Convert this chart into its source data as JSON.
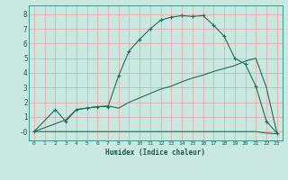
{
  "title": "",
  "xlabel": "Humidex (Indice chaleur)",
  "ylabel": "",
  "bg_color": "#c8e8e0",
  "grid_color": "#e8aaaa",
  "line_color": "#1a7060",
  "xlim": [
    -0.5,
    23.5
  ],
  "ylim": [
    -0.6,
    8.6
  ],
  "xticks": [
    0,
    1,
    2,
    3,
    4,
    5,
    6,
    7,
    8,
    9,
    10,
    11,
    12,
    13,
    14,
    15,
    16,
    17,
    18,
    19,
    20,
    21,
    22,
    23
  ],
  "yticks": [
    0,
    1,
    2,
    3,
    4,
    5,
    6,
    7,
    8
  ],
  "line1_x": [
    0,
    2,
    3,
    4,
    5,
    6,
    7,
    8,
    9,
    10,
    11,
    12,
    13,
    14,
    15,
    16,
    17,
    18,
    19,
    20,
    21,
    22,
    23
  ],
  "line1_y": [
    0.0,
    1.5,
    0.7,
    1.5,
    1.6,
    1.7,
    1.7,
    3.8,
    5.5,
    6.3,
    7.0,
    7.6,
    7.8,
    7.9,
    7.85,
    7.9,
    7.25,
    6.5,
    5.0,
    4.6,
    3.1,
    0.7,
    -0.1
  ],
  "line2_x": [
    0,
    1,
    2,
    3,
    4,
    5,
    6,
    7,
    8,
    9,
    10,
    11,
    12,
    13,
    14,
    15,
    16,
    17,
    18,
    19,
    20,
    21,
    22,
    23
  ],
  "line2_y": [
    0.0,
    0.0,
    0.0,
    0.0,
    0.0,
    0.0,
    0.0,
    0.0,
    0.0,
    0.0,
    0.0,
    0.0,
    0.0,
    0.0,
    0.0,
    0.0,
    0.0,
    0.0,
    0.0,
    0.0,
    0.0,
    0.0,
    -0.1,
    -0.15
  ],
  "line3_x": [
    0,
    3,
    4,
    5,
    6,
    7,
    8,
    9,
    10,
    11,
    12,
    13,
    14,
    15,
    16,
    17,
    18,
    19,
    20,
    21,
    22,
    23
  ],
  "line3_y": [
    0.0,
    0.8,
    1.5,
    1.6,
    1.7,
    1.75,
    1.6,
    2.0,
    2.3,
    2.6,
    2.9,
    3.1,
    3.4,
    3.65,
    3.85,
    4.1,
    4.3,
    4.5,
    4.8,
    5.0,
    3.0,
    -0.1
  ]
}
